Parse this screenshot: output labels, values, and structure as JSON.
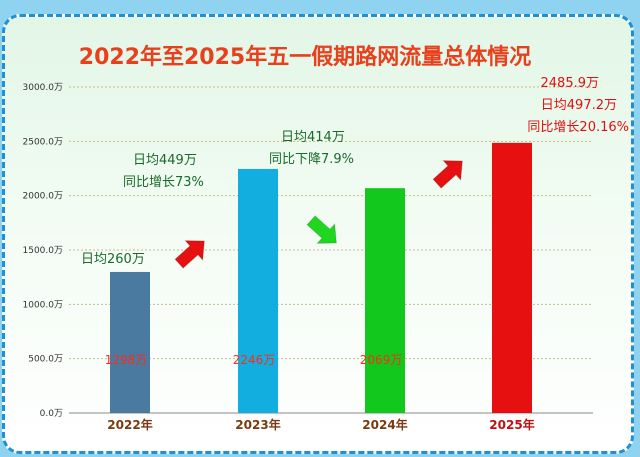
{
  "chart_data": {
    "type": "bar",
    "title": "2022年至2025年五一假期路网流量总体情况",
    "categories": [
      "2022年",
      "2023年",
      "2024年",
      "2025年"
    ],
    "values": [
      1298,
      2246,
      2069,
      2485.9
    ],
    "value_labels": [
      "1298万",
      "2246万",
      "2069万",
      "2485.9万"
    ],
    "bar_colors": [
      "#4a7aa0",
      "#12aee0",
      "#12c81c",
      "#e61010"
    ],
    "ylim": [
      0,
      3000
    ],
    "yticks": [
      "0.0万",
      "500.0万",
      "1000.0万",
      "1500.0万",
      "2000.0万",
      "2500.0万",
      "3000.0万"
    ],
    "ytick_values": [
      0,
      500,
      1000,
      1500,
      2000,
      2500,
      3000
    ],
    "grid": true,
    "xlabel": "",
    "ylabel": ""
  },
  "annotations": {
    "y2022": {
      "line1": "日均260万"
    },
    "y2023": {
      "line1": "日均449万",
      "line2": "同比增长73%"
    },
    "y2024": {
      "line1": "日均414万",
      "line2": "同比下降7.9%"
    },
    "y2025": {
      "line1": "2485.9万",
      "line2": "日均497.2万",
      "line3": "同比增长20.16%"
    }
  },
  "arrows": [
    {
      "name": "up-trend",
      "color": "#e61010"
    },
    {
      "name": "down-trend",
      "color": "#1fd71f"
    },
    {
      "name": "up-trend",
      "color": "#e61010"
    }
  ]
}
